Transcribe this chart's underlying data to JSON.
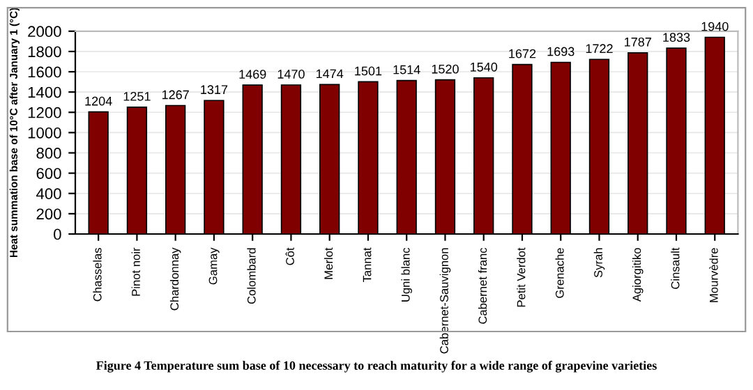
{
  "chart_data": {
    "type": "bar",
    "ylabel": "Heat summation base of 10°C after January 1 (°C)",
    "categories": [
      "Chasselas",
      "Pinot noir",
      "Chardonnay",
      "Gamay",
      "Colombard",
      "Côt",
      "Merlot",
      "Tannat",
      "Ugni blanc",
      "Cabernet-Sauvignon",
      "Cabernet franc",
      "Petit Verdot",
      "Grenache",
      "Syrah",
      "Agiorgitiko",
      "Cinsault",
      "Mourvèdre"
    ],
    "values": [
      1204,
      1251,
      1267,
      1317,
      1469,
      1470,
      1474,
      1501,
      1514,
      1520,
      1540,
      1672,
      1693,
      1722,
      1787,
      1833,
      1940
    ],
    "color": "#800000",
    "data_labels": true,
    "ylim": [
      0,
      2000
    ],
    "yticks": [
      0,
      200,
      400,
      600,
      800,
      1000,
      1200,
      1400,
      1600,
      1800,
      2000
    ],
    "grid": "y",
    "annotations": [
      "Figure 4 Temperature sum base of 10 necessary to reach maturity for a wide range of grapevine varieties"
    ]
  }
}
